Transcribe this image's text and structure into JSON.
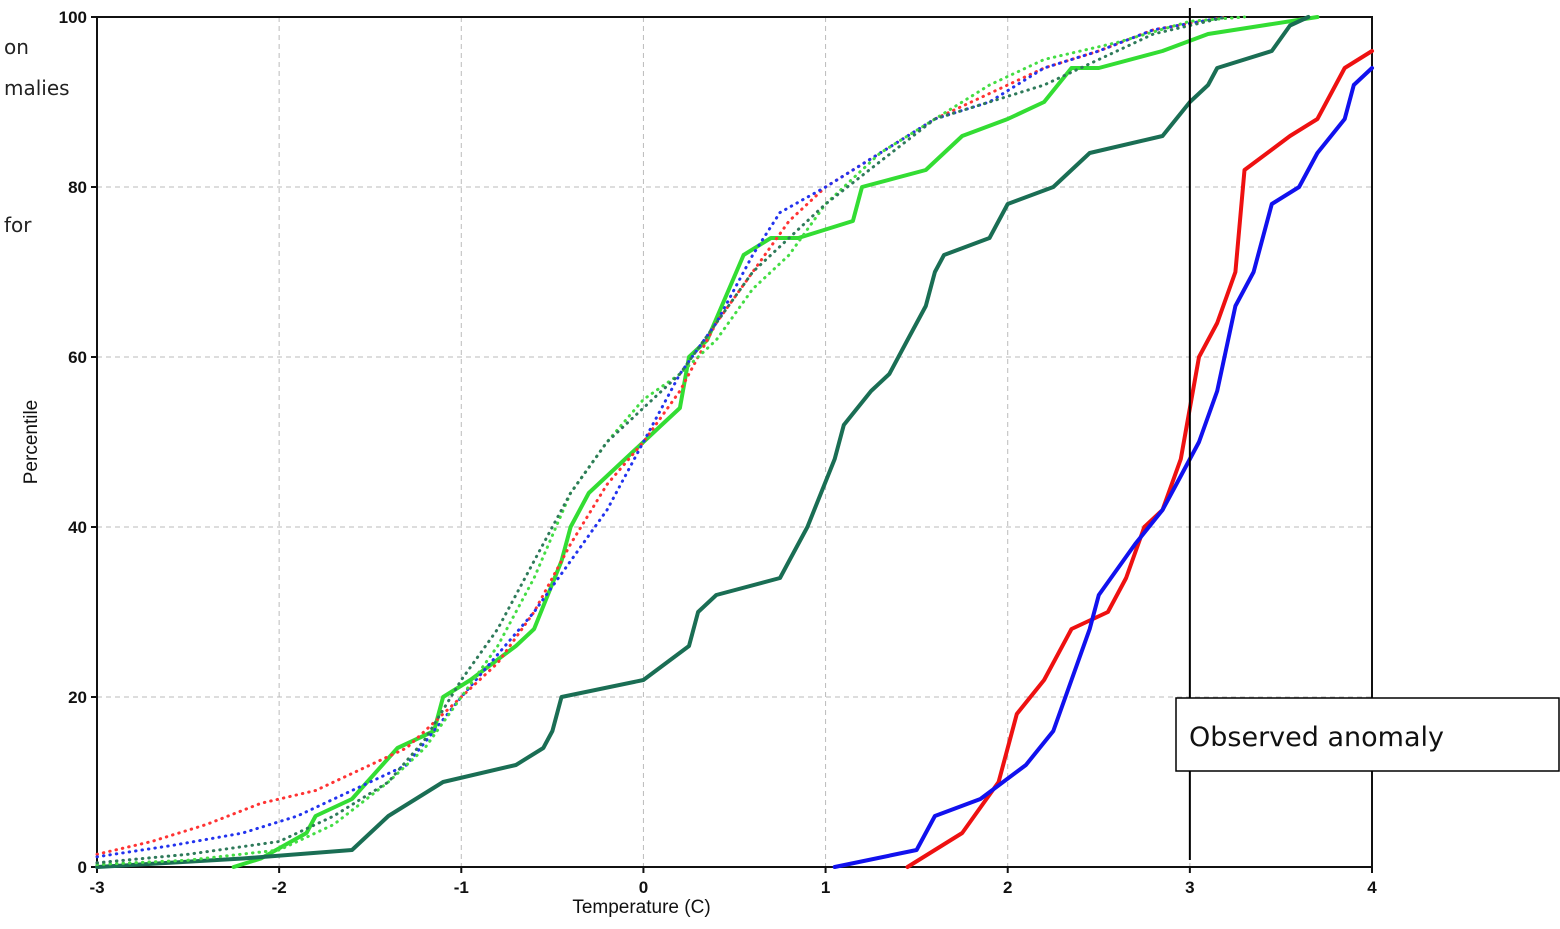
{
  "left_text_fragments": [
    "on",
    "malies",
    "for"
  ],
  "annotation": {
    "text": "Observed anomaly",
    "x": 3
  },
  "chart_data": {
    "type": "line",
    "xlabel": "Temperature (C)",
    "ylabel": "Percentile",
    "xlim": [
      -3,
      4
    ],
    "ylim": [
      0,
      100
    ],
    "xticks": [
      -3,
      -2,
      -1,
      0,
      1,
      2,
      3,
      4
    ],
    "yticks": [
      0,
      20,
      40,
      60,
      80,
      100
    ],
    "grid": true,
    "series": [
      {
        "color": "#33dd33",
        "dash": "solid",
        "points": [
          [
            -2.25,
            0
          ],
          [
            -2.1,
            1
          ],
          [
            -1.85,
            4
          ],
          [
            -1.8,
            6
          ],
          [
            -1.6,
            8
          ],
          [
            -1.35,
            14
          ],
          [
            -1.15,
            16
          ],
          [
            -1.1,
            20
          ],
          [
            -0.95,
            22
          ],
          [
            -0.7,
            26
          ],
          [
            -0.6,
            28
          ],
          [
            -0.45,
            36
          ],
          [
            -0.4,
            40
          ],
          [
            -0.3,
            44
          ],
          [
            -0.1,
            48
          ],
          [
            0.1,
            52
          ],
          [
            0.2,
            54
          ],
          [
            0.25,
            60
          ],
          [
            0.35,
            62
          ],
          [
            0.55,
            72
          ],
          [
            0.7,
            74
          ],
          [
            0.85,
            74
          ],
          [
            1.15,
            76
          ],
          [
            1.2,
            80
          ],
          [
            1.55,
            82
          ],
          [
            1.65,
            84
          ],
          [
            1.75,
            86
          ],
          [
            2.0,
            88
          ],
          [
            2.2,
            90
          ],
          [
            2.35,
            94
          ],
          [
            2.5,
            94
          ],
          [
            2.85,
            96
          ],
          [
            3.1,
            98
          ],
          [
            3.4,
            99
          ],
          [
            3.7,
            100
          ]
        ]
      },
      {
        "color": "#1a6e54",
        "dash": "solid",
        "points": [
          [
            -3,
            0
          ],
          [
            -2.2,
            1
          ],
          [
            -1.6,
            2
          ],
          [
            -1.5,
            4
          ],
          [
            -1.4,
            6
          ],
          [
            -1.1,
            10
          ],
          [
            -0.7,
            12
          ],
          [
            -0.55,
            14
          ],
          [
            -0.5,
            16
          ],
          [
            -0.45,
            20
          ],
          [
            0.0,
            22
          ],
          [
            0.25,
            26
          ],
          [
            0.3,
            30
          ],
          [
            0.4,
            32
          ],
          [
            0.75,
            34
          ],
          [
            0.8,
            36
          ],
          [
            0.9,
            40
          ],
          [
            1.05,
            48
          ],
          [
            1.1,
            52
          ],
          [
            1.25,
            56
          ],
          [
            1.35,
            58
          ],
          [
            1.45,
            62
          ],
          [
            1.55,
            66
          ],
          [
            1.6,
            70
          ],
          [
            1.65,
            72
          ],
          [
            1.9,
            74
          ],
          [
            2.0,
            78
          ],
          [
            2.25,
            80
          ],
          [
            2.45,
            84
          ],
          [
            2.85,
            86
          ],
          [
            3.0,
            90
          ],
          [
            3.1,
            92
          ],
          [
            3.15,
            94
          ],
          [
            3.45,
            96
          ],
          [
            3.55,
            99
          ],
          [
            3.65,
            100
          ]
        ]
      },
      {
        "color": "#ee1111",
        "dash": "solid",
        "points": [
          [
            1.45,
            0
          ],
          [
            1.75,
            4
          ],
          [
            1.95,
            10
          ],
          [
            2.05,
            18
          ],
          [
            2.2,
            22
          ],
          [
            2.35,
            28
          ],
          [
            2.55,
            30
          ],
          [
            2.65,
            34
          ],
          [
            2.75,
            40
          ],
          [
            2.85,
            42
          ],
          [
            2.95,
            48
          ],
          [
            3.0,
            54
          ],
          [
            3.05,
            60
          ],
          [
            3.15,
            64
          ],
          [
            3.25,
            70
          ],
          [
            3.3,
            82
          ],
          [
            3.55,
            86
          ],
          [
            3.7,
            88
          ],
          [
            3.85,
            94
          ],
          [
            4.0,
            96
          ]
        ]
      },
      {
        "color": "#1111ee",
        "dash": "solid",
        "points": [
          [
            1.05,
            0
          ],
          [
            1.5,
            2
          ],
          [
            1.6,
            6
          ],
          [
            1.85,
            8
          ],
          [
            2.1,
            12
          ],
          [
            2.25,
            16
          ],
          [
            2.35,
            22
          ],
          [
            2.45,
            28
          ],
          [
            2.5,
            32
          ],
          [
            2.7,
            38
          ],
          [
            2.85,
            42
          ],
          [
            2.95,
            46
          ],
          [
            3.05,
            50
          ],
          [
            3.15,
            56
          ],
          [
            3.25,
            66
          ],
          [
            3.35,
            70
          ],
          [
            3.45,
            78
          ],
          [
            3.6,
            80
          ],
          [
            3.7,
            84
          ],
          [
            3.85,
            88
          ],
          [
            3.9,
            92
          ],
          [
            4.0,
            94
          ]
        ]
      },
      {
        "color": "#ff3333",
        "dash": "dotted",
        "points": [
          [
            -3,
            1.5
          ],
          [
            -2.7,
            3
          ],
          [
            -2.4,
            5
          ],
          [
            -2.1,
            7.5
          ],
          [
            -1.8,
            9
          ],
          [
            -1.6,
            11
          ],
          [
            -1.3,
            14
          ],
          [
            -1.0,
            20
          ],
          [
            -0.8,
            24
          ],
          [
            -0.6,
            30
          ],
          [
            -0.4,
            38
          ],
          [
            -0.2,
            45
          ],
          [
            0.0,
            50
          ],
          [
            0.2,
            56
          ],
          [
            0.4,
            64
          ],
          [
            0.6,
            70
          ],
          [
            0.8,
            76
          ],
          [
            1.0,
            80
          ],
          [
            1.3,
            84
          ],
          [
            1.6,
            88
          ],
          [
            1.9,
            91
          ],
          [
            2.2,
            94
          ],
          [
            2.5,
            96
          ],
          [
            2.8,
            98.5
          ],
          [
            3.2,
            100
          ]
        ]
      },
      {
        "color": "#2233ee",
        "dash": "dotted",
        "points": [
          [
            -3,
            1.2
          ],
          [
            -2.6,
            2.5
          ],
          [
            -2.2,
            4
          ],
          [
            -1.9,
            6
          ],
          [
            -1.6,
            9
          ],
          [
            -1.3,
            12
          ],
          [
            -1.0,
            20
          ],
          [
            -0.8,
            25
          ],
          [
            -0.6,
            30
          ],
          [
            -0.4,
            36
          ],
          [
            -0.2,
            42
          ],
          [
            0.0,
            50
          ],
          [
            0.2,
            58
          ],
          [
            0.4,
            64
          ],
          [
            0.6,
            72
          ],
          [
            0.75,
            77
          ],
          [
            1.0,
            80
          ],
          [
            1.3,
            84
          ],
          [
            1.6,
            88
          ],
          [
            1.9,
            90
          ],
          [
            2.2,
            94
          ],
          [
            2.5,
            96
          ],
          [
            2.8,
            98.5
          ],
          [
            3.2,
            100
          ]
        ]
      },
      {
        "color": "#44dd44",
        "dash": "dotted",
        "points": [
          [
            -3,
            0.3
          ],
          [
            -2.5,
            0.8
          ],
          [
            -2.0,
            2
          ],
          [
            -1.7,
            5
          ],
          [
            -1.4,
            10
          ],
          [
            -1.2,
            14
          ],
          [
            -1.0,
            20
          ],
          [
            -0.8,
            26
          ],
          [
            -0.6,
            34
          ],
          [
            -0.4,
            44
          ],
          [
            -0.2,
            50
          ],
          [
            0.0,
            55
          ],
          [
            0.2,
            58
          ],
          [
            0.4,
            62
          ],
          [
            0.6,
            68
          ],
          [
            0.8,
            72
          ],
          [
            1.0,
            78
          ],
          [
            1.3,
            84
          ],
          [
            1.6,
            88
          ],
          [
            1.9,
            92
          ],
          [
            2.2,
            95
          ],
          [
            2.6,
            97
          ],
          [
            3.0,
            99.5
          ],
          [
            3.3,
            100
          ]
        ]
      },
      {
        "color": "#2e7a5a",
        "dash": "dotted",
        "points": [
          [
            -3,
            0.5
          ],
          [
            -2.5,
            1.5
          ],
          [
            -2.0,
            3
          ],
          [
            -1.7,
            6
          ],
          [
            -1.4,
            10
          ],
          [
            -1.2,
            15
          ],
          [
            -1.0,
            22
          ],
          [
            -0.8,
            28
          ],
          [
            -0.6,
            36
          ],
          [
            -0.4,
            44
          ],
          [
            -0.2,
            50
          ],
          [
            0.0,
            54
          ],
          [
            0.2,
            58
          ],
          [
            0.4,
            64
          ],
          [
            0.6,
            70
          ],
          [
            0.8,
            74
          ],
          [
            1.0,
            78
          ],
          [
            1.3,
            83
          ],
          [
            1.6,
            88
          ],
          [
            1.9,
            90
          ],
          [
            2.2,
            92
          ],
          [
            2.5,
            95
          ],
          [
            2.8,
            98
          ],
          [
            3.2,
            100
          ]
        ]
      }
    ]
  }
}
